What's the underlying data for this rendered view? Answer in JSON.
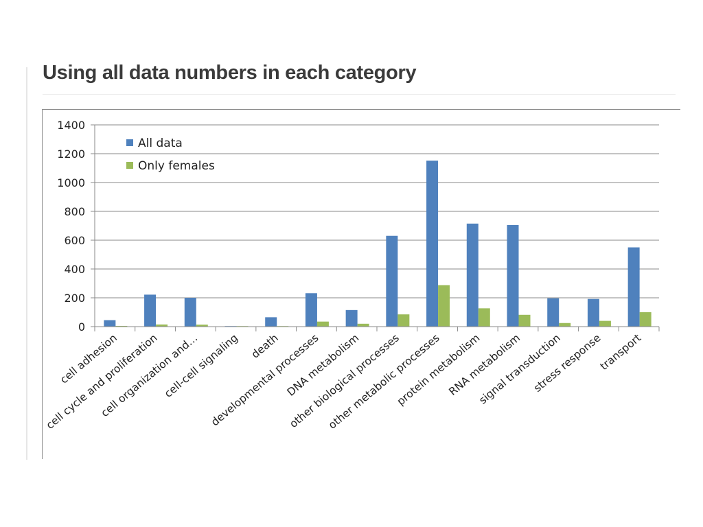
{
  "slide": {
    "title": "Using all data numbers in each category"
  },
  "chart_data": {
    "type": "bar",
    "categories": [
      "cell adhesion",
      "cell cycle and proliferation",
      "cell organization and…",
      "cell-cell signaling",
      "death",
      "developmental processes",
      "DNA metabolism",
      "other biological processes",
      "other metabolic processes",
      "protein metabolism",
      "RNA metabolism",
      "signal transduction",
      "stress response",
      "transport"
    ],
    "series": [
      {
        "name": "All data",
        "color": "#4f81bd",
        "values": [
          45,
          222,
          200,
          3,
          65,
          232,
          115,
          630,
          1152,
          715,
          705,
          197,
          192,
          550
        ]
      },
      {
        "name": "Only females",
        "color": "#9bbb59",
        "values": [
          5,
          15,
          14,
          1,
          3,
          35,
          20,
          85,
          288,
          127,
          82,
          25,
          40,
          100
        ]
      }
    ],
    "title": "",
    "xlabel": "",
    "ylabel": "",
    "ylim": [
      0,
      1400
    ],
    "yticks": [
      "0",
      "200",
      "400",
      "600",
      "800",
      "1000",
      "1200",
      "1400"
    ],
    "grid": true,
    "legend_position": "top-left"
  }
}
